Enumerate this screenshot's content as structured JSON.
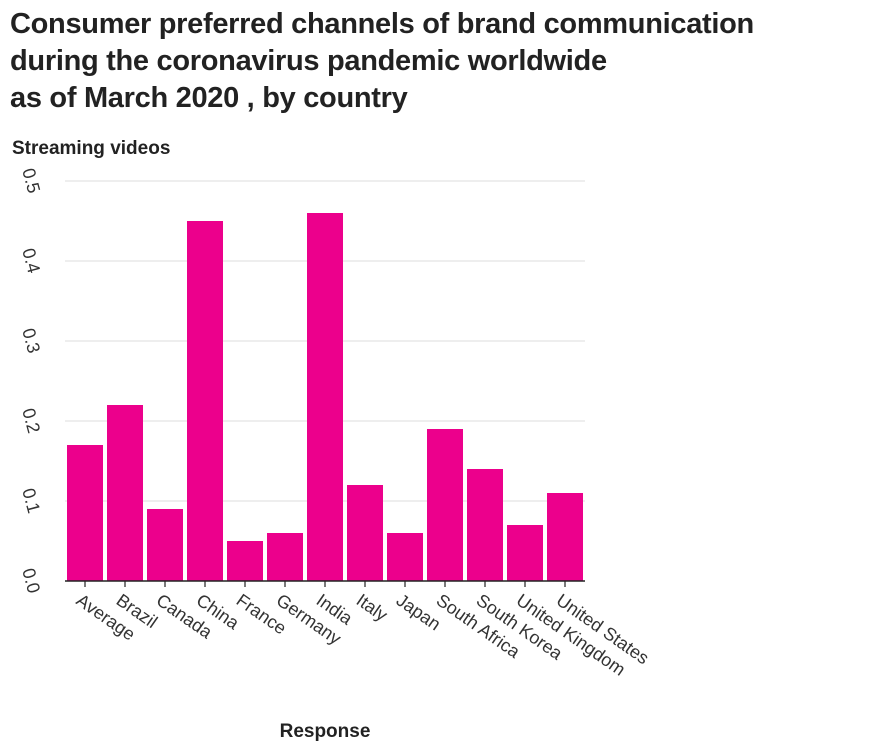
{
  "chart_data": {
    "type": "bar",
    "title_lines": [
      "Consumer preferred channels of brand communication",
      "during the coronavirus pandemic worldwide",
      "as of March 2020 , by country"
    ],
    "ylabel": "Streaming videos",
    "xlabel": "Response",
    "categories": [
      "Average",
      "Brazil",
      "Canada",
      "China",
      "France",
      "Germany",
      "India",
      "Italy",
      "Japan",
      "South Africa",
      "South Korea",
      "United Kingdom",
      "United States"
    ],
    "values": [
      0.17,
      0.22,
      0.09,
      0.45,
      0.05,
      0.06,
      0.46,
      0.12,
      0.06,
      0.19,
      0.14,
      0.07,
      0.11
    ],
    "ylim": [
      0,
      0.5
    ],
    "yticks": [
      "0.0",
      "0.1",
      "0.2",
      "0.3",
      "0.4",
      "0.5"
    ],
    "grid": true,
    "colors": {
      "bar": "#ec008c",
      "grid": "#dddddd",
      "axis": "#222222"
    }
  }
}
